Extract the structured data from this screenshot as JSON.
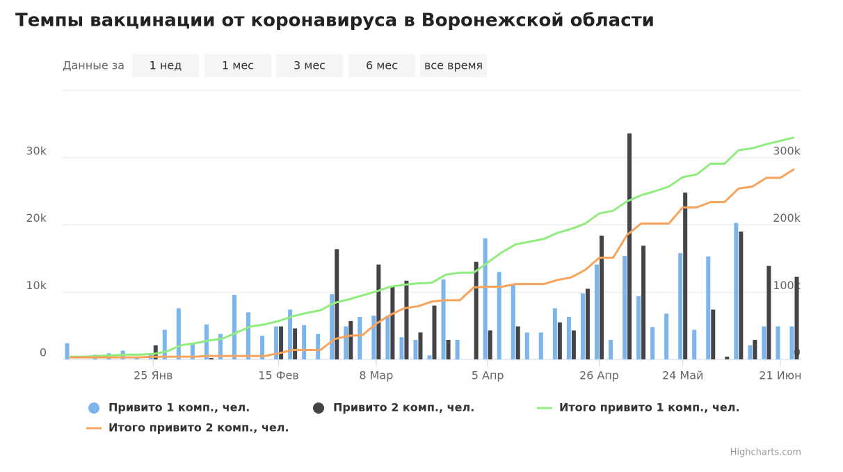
{
  "chart_data": {
    "type": "combo",
    "title": "Темпы вакцинации от коронавируса в Воронежской области",
    "range_selector": {
      "label": "Данные за",
      "buttons": [
        "1 нед",
        "1 мес",
        "3 мес",
        "6 мес",
        "все время"
      ]
    },
    "credits": "Highcharts.com",
    "categories": [
      null,
      null,
      null,
      null,
      null,
      null,
      "25 Янв",
      null,
      null,
      null,
      null,
      null,
      null,
      null,
      null,
      "15 Фев",
      null,
      null,
      null,
      null,
      null,
      null,
      "8 Мар",
      null,
      null,
      null,
      null,
      null,
      null,
      null,
      "5 Апр",
      null,
      null,
      null,
      null,
      null,
      null,
      null,
      "26 Апр",
      null,
      null,
      null,
      null,
      null,
      "24 Май",
      null,
      null,
      null,
      null,
      null,
      null,
      "21 Июн",
      null
    ],
    "ylim": [
      0,
      40000
    ],
    "yticks": [
      0,
      {
        "value": 10000,
        "label": "10k"
      },
      {
        "value": 20000,
        "label": "20k"
      },
      {
        "value": 30000,
        "label": "30k"
      }
    ],
    "y2lim": [
      0,
      400000
    ],
    "y2ticks": [
      0,
      {
        "value": 100000,
        "label": "100k"
      },
      {
        "value": 200000,
        "label": "200k"
      },
      {
        "value": 300000,
        "label": "300k"
      }
    ],
    "grid": true,
    "series": [
      {
        "name": "Привито 1 комп., чел.",
        "type": "column",
        "color": "#7cb5ec",
        "values": [
          2400,
          0,
          700,
          900,
          1300,
          200,
          800,
          4400,
          7600,
          2400,
          5200,
          3800,
          9600,
          7000,
          3500,
          4900,
          7400,
          5100,
          3800,
          9700,
          4900,
          6300,
          6500,
          6500,
          3300,
          2900,
          600,
          11900,
          2900,
          0,
          18000,
          13000,
          11000,
          4000,
          4000,
          7600,
          6300,
          9800,
          14100,
          2900,
          15400,
          9400,
          4800,
          6800,
          15800,
          4400,
          15300,
          0,
          20300,
          2100,
          4900,
          4900,
          4900
        ]
      },
      {
        "name": "Привито 2 комп., чел.",
        "type": "column",
        "color": "#434348",
        "values": [
          0,
          0,
          0,
          0,
          0,
          0,
          2100,
          0,
          0,
          0,
          200,
          0,
          0,
          0,
          0,
          4900,
          4600,
          0,
          0,
          16400,
          5700,
          0,
          14100,
          10800,
          11700,
          4000,
          8000,
          2900,
          0,
          14500,
          4300,
          0,
          4900,
          0,
          0,
          5500,
          4300,
          10500,
          18400,
          0,
          33600,
          16900,
          0,
          0,
          24800,
          0,
          7400,
          400,
          19000,
          2900,
          13900,
          0,
          12300
        ]
      },
      {
        "name": "Итого привито 1 комп., чел.",
        "type": "line",
        "axis": "y2",
        "color": "#90ed7d",
        "values": [
          4000,
          4000,
          5000,
          6000,
          7000,
          7000,
          8000,
          12000,
          21000,
          24000,
          28000,
          31000,
          40000,
          49000,
          52000,
          57000,
          64000,
          69000,
          73000,
          84000,
          89000,
          95000,
          101000,
          108000,
          111000,
          113000,
          114000,
          126000,
          129000,
          129000,
          144000,
          159000,
          171000,
          175000,
          179000,
          188000,
          194000,
          202000,
          217000,
          221000,
          235000,
          244000,
          250000,
          257000,
          271000,
          275000,
          291000,
          291000,
          311000,
          314000,
          320000,
          325000,
          330000
        ]
      },
      {
        "name": "Итого привито 2 комп., чел.",
        "type": "line",
        "axis": "y2",
        "color": "#f7a35c",
        "values": [
          3000,
          3000,
          3000,
          3000,
          3000,
          3000,
          4000,
          4000,
          4000,
          4000,
          5000,
          5000,
          5000,
          5000,
          5000,
          9000,
          14000,
          14000,
          14000,
          30000,
          35000,
          36000,
          53000,
          66000,
          76000,
          79000,
          86000,
          88000,
          88000,
          107000,
          108000,
          108000,
          112000,
          112000,
          112000,
          118000,
          122000,
          133000,
          151000,
          151000,
          185000,
          202000,
          202000,
          202000,
          226000,
          226000,
          234000,
          234000,
          254000,
          257000,
          270000,
          270000,
          283000
        ]
      }
    ]
  }
}
